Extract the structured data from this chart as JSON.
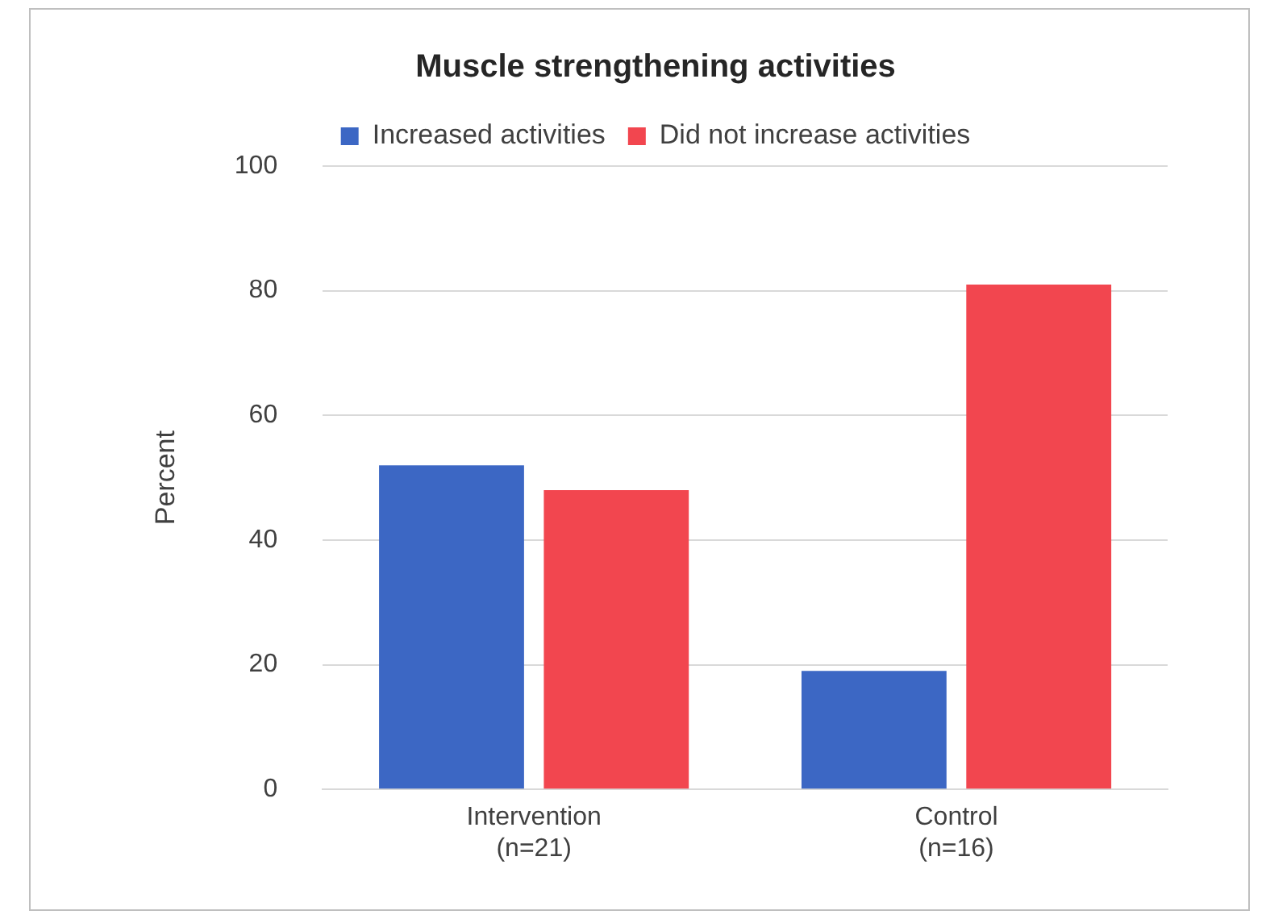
{
  "chart_data": {
    "type": "bar",
    "title": "Muscle strengthening activities",
    "ylabel": "Percent",
    "categories": [
      "Intervention\n(n=21)",
      "Control\n(n=16)"
    ],
    "series": [
      {
        "name": "Increased activities",
        "color": "#3c67c4",
        "values": [
          52,
          19
        ]
      },
      {
        "name": "Did not increase activities",
        "color": "#f2464f",
        "values": [
          48,
          81
        ]
      }
    ],
    "ylim": [
      0,
      100
    ],
    "yticks": [
      0,
      20,
      40,
      60,
      80,
      100
    ],
    "grid": "y",
    "legend": "top"
  }
}
